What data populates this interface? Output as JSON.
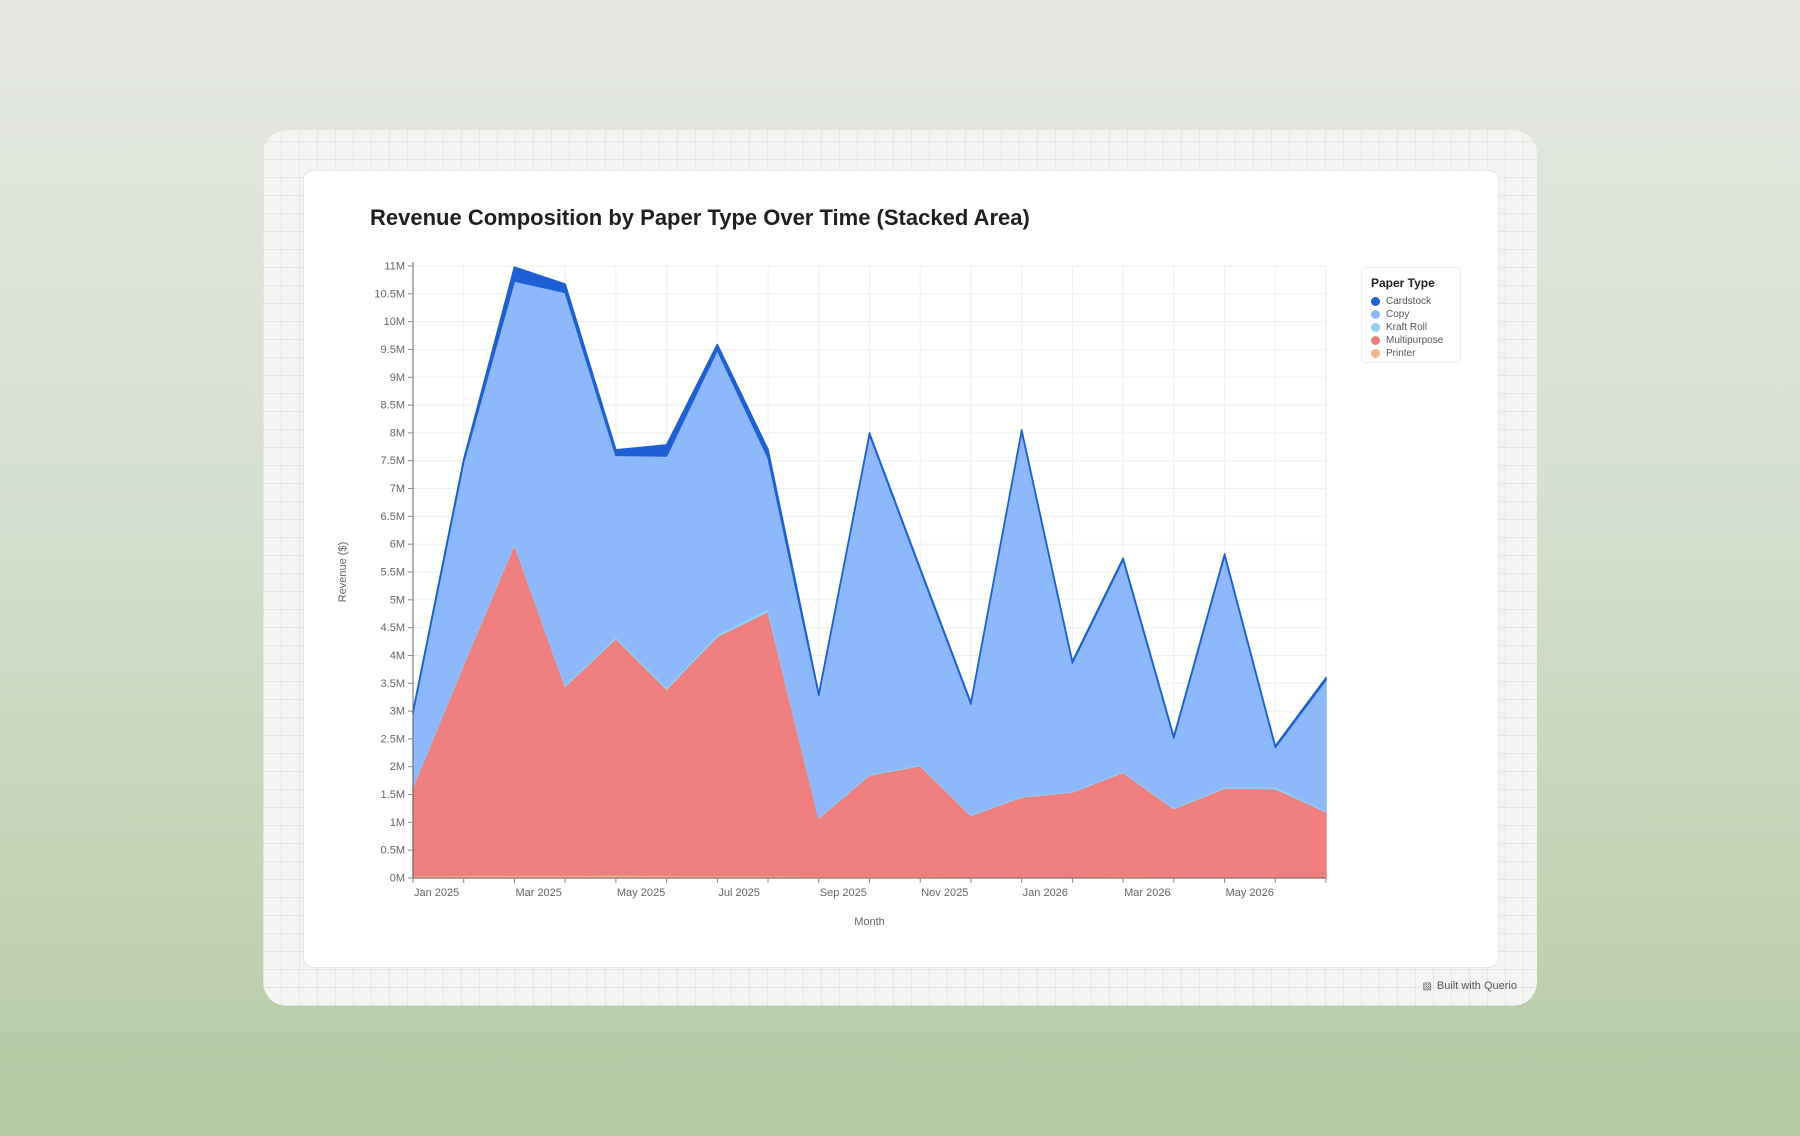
{
  "footer": {
    "icon": "querio-logo-icon",
    "text": "Built with Querio"
  },
  "chart_data": {
    "type": "area",
    "stacked": true,
    "title": "Revenue Composition by Paper Type Over Time (Stacked Area)",
    "xlabel": "Month",
    "ylabel": "Revenue ($)",
    "x": [
      "2025-01",
      "2025-02",
      "2025-03",
      "2025-04",
      "2025-05",
      "2025-06",
      "2025-07",
      "2025-08",
      "2025-09",
      "2025-10",
      "2025-11",
      "2025-12",
      "2026-01",
      "2026-02",
      "2026-03",
      "2026-04",
      "2026-05",
      "2026-06",
      "2026-07"
    ],
    "x_ticks": [
      "Jan 2025",
      "Mar 2025",
      "May 2025",
      "Jul 2025",
      "Sep 2025",
      "Nov 2025",
      "Jan 2026",
      "Mar 2026",
      "May 2026"
    ],
    "ylim": [
      0,
      11000000
    ],
    "y_ticks": [
      "0M",
      "0.5M",
      "1M",
      "1.5M",
      "2M",
      "2.5M",
      "3M",
      "3.5M",
      "4M",
      "4.5M",
      "5M",
      "5.5M",
      "6M",
      "6.5M",
      "7M",
      "7.5M",
      "8M",
      "8.5M",
      "9M",
      "9.5M",
      "10M",
      "10.5M",
      "11M"
    ],
    "grid": true,
    "legend": {
      "title": "Paper Type",
      "position": "right"
    },
    "series": [
      {
        "name": "Printer",
        "color": "#f4b48c",
        "values": [
          40000,
          45000,
          50000,
          45000,
          55000,
          45000,
          40000,
          40000,
          30000,
          30000,
          30000,
          25000,
          25000,
          25000,
          30000,
          25000,
          25000,
          25000,
          20000
        ]
      },
      {
        "name": "Multipurpose",
        "color": "#ef7f7f",
        "values": [
          1600000,
          3800000,
          5950000,
          3400000,
          4250000,
          3350000,
          4300000,
          4750000,
          1050000,
          1820000,
          1990000,
          1100000,
          1430000,
          1520000,
          1870000,
          1220000,
          1590000,
          1580000,
          1170000
        ]
      },
      {
        "name": "Kraft Roll",
        "color": "#8fd0f0",
        "values": [
          20000,
          30000,
          30000,
          30000,
          40000,
          40000,
          50000,
          60000,
          20000,
          20000,
          20000,
          20000,
          20000,
          20000,
          20000,
          20000,
          30000,
          40000,
          20000
        ]
      },
      {
        "name": "Copy",
        "color": "#8eb8fc",
        "values": [
          1300000,
          3600000,
          4700000,
          7050000,
          3250000,
          4150000,
          5100000,
          2700000,
          2180000,
          6100000,
          3500000,
          1980000,
          6550000,
          2300000,
          3800000,
          1250000,
          4150000,
          700000,
          2350000
        ]
      },
      {
        "name": "Cardstock",
        "color": "#1f5fd6",
        "values": [
          40000,
          50000,
          250000,
          150000,
          100000,
          200000,
          100000,
          150000,
          30000,
          30000,
          30000,
          30000,
          30000,
          30000,
          30000,
          30000,
          30000,
          30000,
          40000
        ]
      }
    ]
  }
}
